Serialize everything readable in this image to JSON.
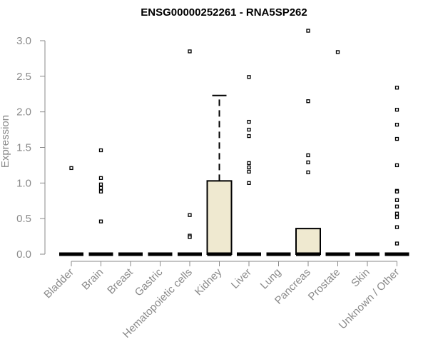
{
  "chart_data": {
    "type": "box",
    "title": "ENSG00000252261 - RNA5SP262",
    "xlabel": "",
    "ylabel": "Expression",
    "ylim": [
      0,
      3.15
    ],
    "yticks": [
      0.0,
      0.5,
      1.0,
      1.5,
      2.0,
      2.5,
      3.0
    ],
    "ytick_labels": [
      "0.0",
      "0.5",
      "1.0",
      "1.5",
      "2.0",
      "2.5",
      "3.0"
    ],
    "grid": false,
    "box_fill": "#efe9d0",
    "box_stroke": "#000000",
    "categories": [
      "Bladder",
      "Brain",
      "Breast",
      "Gastric",
      "Hematopoietic cells",
      "Kidney",
      "Liver",
      "Lung",
      "Pancreas",
      "Prostate",
      "Skin",
      "Unknown / Other"
    ],
    "boxes": [
      {
        "category": "Bladder",
        "q1": 0,
        "median": 0,
        "q3": 0,
        "whisker_low": 0,
        "whisker_high": 0,
        "outliers": [
          1.21
        ]
      },
      {
        "category": "Brain",
        "q1": 0,
        "median": 0,
        "q3": 0,
        "whisker_low": 0,
        "whisker_high": 0,
        "outliers": [
          1.46,
          1.07,
          0.98,
          0.93,
          0.88,
          0.46
        ]
      },
      {
        "category": "Breast",
        "q1": 0,
        "median": 0,
        "q3": 0,
        "whisker_low": 0,
        "whisker_high": 0,
        "outliers": []
      },
      {
        "category": "Gastric",
        "q1": 0,
        "median": 0,
        "q3": 0,
        "whisker_low": 0,
        "whisker_high": 0,
        "outliers": []
      },
      {
        "category": "Hematopoietic cells",
        "q1": 0,
        "median": 0,
        "q3": 0,
        "whisker_low": 0,
        "whisker_high": 0,
        "outliers": [
          2.85,
          0.55,
          0.26,
          0.24
        ]
      },
      {
        "category": "Kidney",
        "q1": 0,
        "median": 0,
        "q3": 1.03,
        "whisker_low": 0,
        "whisker_high": 2.23,
        "outliers": []
      },
      {
        "category": "Liver",
        "q1": 0,
        "median": 0,
        "q3": 0,
        "whisker_low": 0,
        "whisker_high": 0,
        "outliers": [
          2.49,
          1.86,
          1.75,
          1.66,
          1.28,
          1.22,
          1.16,
          1.0
        ]
      },
      {
        "category": "Lung",
        "q1": 0,
        "median": 0,
        "q3": 0,
        "whisker_low": 0,
        "whisker_high": 0,
        "outliers": []
      },
      {
        "category": "Pancreas",
        "q1": 0,
        "median": 0,
        "q3": 0.36,
        "whisker_low": 0,
        "whisker_high": 0.36,
        "outliers": [
          3.14,
          2.15,
          1.39,
          1.29,
          1.15
        ]
      },
      {
        "category": "Prostate",
        "q1": 0,
        "median": 0,
        "q3": 0,
        "whisker_low": 0,
        "whisker_high": 0,
        "outliers": [
          2.84
        ]
      },
      {
        "category": "Skin",
        "q1": 0,
        "median": 0,
        "q3": 0,
        "whisker_low": 0,
        "whisker_high": 0,
        "outliers": []
      },
      {
        "category": "Unknown / Other",
        "q1": 0,
        "median": 0,
        "q3": 0,
        "whisker_low": 0,
        "whisker_high": 0,
        "outliers": [
          2.34,
          2.03,
          1.82,
          1.62,
          1.25,
          0.89,
          0.88,
          0.76,
          0.67,
          0.57,
          0.52,
          0.38,
          0.15
        ]
      }
    ]
  }
}
